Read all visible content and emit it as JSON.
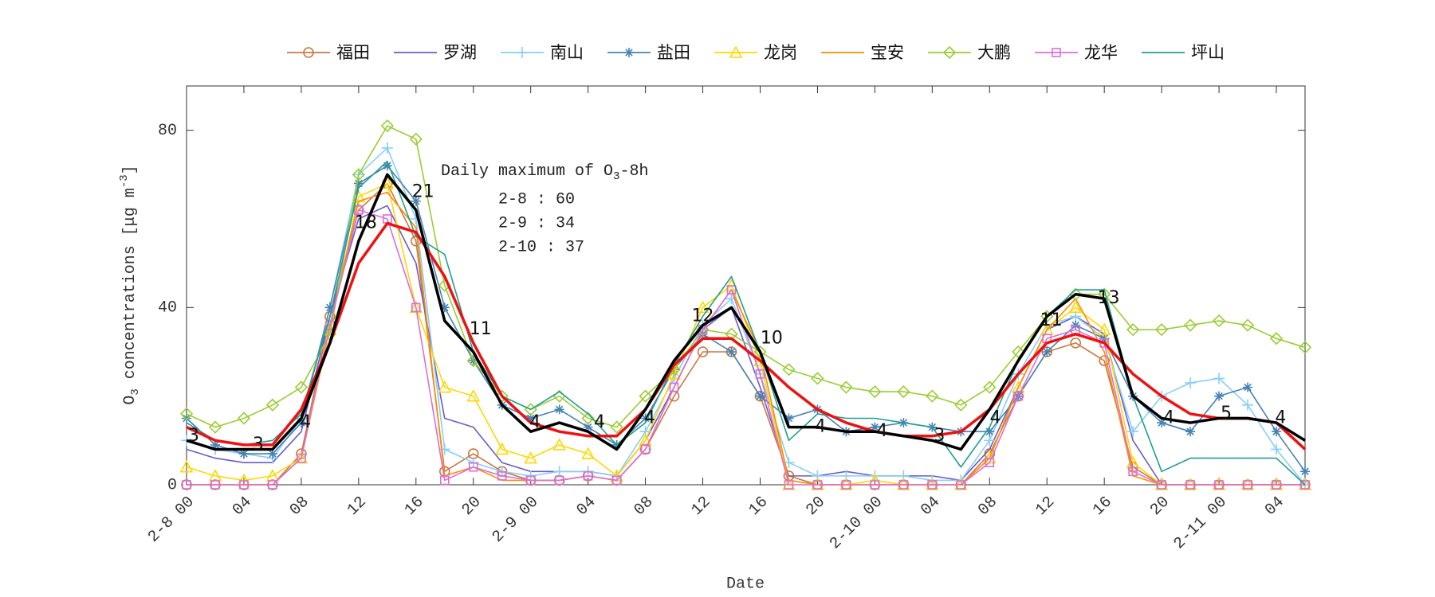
{
  "chart_data": {
    "type": "line",
    "x_label": "Date",
    "y_label_parts": [
      "O",
      "3",
      " concentrations [",
      "μg m",
      "-3",
      "]"
    ],
    "xlim": [
      0,
      78
    ],
    "ylim": [
      0,
      90
    ],
    "yticks": [
      0,
      40,
      80
    ],
    "xticks": [
      {
        "value": 0,
        "label": "2-8 00"
      },
      {
        "value": 4,
        "label": "04"
      },
      {
        "value": 8,
        "label": "08"
      },
      {
        "value": 12,
        "label": "12"
      },
      {
        "value": 16,
        "label": "16"
      },
      {
        "value": 20,
        "label": "20"
      },
      {
        "value": 24,
        "label": "2-9 00"
      },
      {
        "value": 28,
        "label": "04"
      },
      {
        "value": 32,
        "label": "08"
      },
      {
        "value": 36,
        "label": "12"
      },
      {
        "value": 40,
        "label": "16"
      },
      {
        "value": 44,
        "label": "20"
      },
      {
        "value": 48,
        "label": "2-10 00"
      },
      {
        "value": 52,
        "label": "04"
      },
      {
        "value": 56,
        "label": "08"
      },
      {
        "value": 60,
        "label": "12"
      },
      {
        "value": 64,
        "label": "16"
      },
      {
        "value": 68,
        "label": "20"
      },
      {
        "value": 72,
        "label": "2-11 00"
      },
      {
        "value": 76,
        "label": "04"
      }
    ],
    "x": [
      0,
      2,
      4,
      6,
      8,
      10,
      12,
      14,
      16,
      18,
      20,
      22,
      24,
      26,
      28,
      30,
      32,
      34,
      36,
      38,
      40,
      42,
      44,
      46,
      48,
      50,
      52,
      54,
      56,
      58,
      60,
      62,
      64,
      66,
      68,
      70,
      72,
      74,
      76,
      78
    ],
    "series": [
      {
        "name": "福田",
        "color": "#c87941",
        "marker": "circle",
        "values": [
          0,
          0,
          0,
          0,
          7,
          38,
          62,
          68,
          55,
          3,
          7,
          3,
          1,
          1,
          2,
          1,
          8,
          20,
          30,
          30,
          20,
          2,
          0,
          0,
          0,
          0,
          0,
          0,
          7,
          20,
          30,
          32,
          28,
          4,
          0,
          0,
          0,
          0,
          0,
          0
        ]
      },
      {
        "name": "罗湖",
        "color": "#6a5acd",
        "marker": "none",
        "values": [
          8,
          6,
          5,
          5,
          12,
          38,
          60,
          63,
          50,
          15,
          13,
          5,
          3,
          3,
          3,
          2,
          10,
          22,
          35,
          40,
          22,
          2,
          2,
          3,
          2,
          2,
          2,
          1,
          8,
          22,
          35,
          38,
          34,
          10,
          0,
          0,
          0,
          0,
          0,
          0
        ]
      },
      {
        "name": "南山",
        "color": "#87cefa",
        "marker": "plus",
        "values": [
          10,
          8,
          7,
          6,
          15,
          40,
          70,
          76,
          60,
          8,
          5,
          3,
          2,
          3,
          3,
          2,
          12,
          24,
          36,
          42,
          25,
          5,
          2,
          2,
          2,
          2,
          1,
          1,
          10,
          25,
          36,
          38,
          33,
          12,
          20,
          23,
          24,
          18,
          8,
          0
        ]
      },
      {
        "name": "盐田",
        "color": "#4682b4",
        "marker": "star",
        "values": [
          15,
          9,
          7,
          7,
          14,
          40,
          68,
          72,
          64,
          40,
          28,
          18,
          15,
          17,
          13,
          9,
          15,
          26,
          34,
          30,
          20,
          15,
          17,
          12,
          13,
          14,
          13,
          12,
          12,
          20,
          30,
          36,
          33,
          20,
          14,
          12,
          20,
          22,
          12,
          3
        ]
      },
      {
        "name": "龙岗",
        "color": "#ffd700",
        "marker": "triangle",
        "values": [
          4,
          2,
          1,
          2,
          6,
          35,
          65,
          68,
          40,
          22,
          20,
          8,
          6,
          9,
          7,
          2,
          10,
          25,
          40,
          45,
          28,
          0,
          0,
          0,
          1,
          0,
          0,
          0,
          6,
          22,
          35,
          40,
          35,
          5,
          0,
          0,
          0,
          0,
          0,
          0
        ]
      },
      {
        "name": "宝安",
        "color": "#ff8c00",
        "marker": "none",
        "values": [
          0,
          0,
          0,
          0,
          6,
          36,
          64,
          66,
          58,
          2,
          4,
          1,
          1,
          1,
          2,
          1,
          8,
          22,
          35,
          44,
          30,
          1,
          0,
          0,
          0,
          0,
          0,
          0,
          6,
          22,
          35,
          42,
          30,
          2,
          0,
          0,
          0,
          0,
          0,
          0
        ]
      },
      {
        "name": "大鹏",
        "color": "#9acd32",
        "marker": "diamond",
        "values": [
          16,
          13,
          15,
          18,
          22,
          34,
          70,
          81,
          78,
          45,
          28,
          20,
          17,
          20,
          15,
          13,
          20,
          26,
          35,
          34,
          30,
          26,
          24,
          22,
          21,
          21,
          20,
          18,
          22,
          30,
          38,
          43,
          43,
          35,
          35,
          36,
          37,
          36,
          33,
          31
        ]
      },
      {
        "name": "龙华",
        "color": "#da70d6",
        "marker": "square",
        "values": [
          0,
          0,
          0,
          0,
          6,
          36,
          62,
          60,
          40,
          1,
          4,
          2,
          1,
          1,
          2,
          1,
          8,
          22,
          35,
          44,
          25,
          0,
          0,
          0,
          0,
          0,
          0,
          0,
          5,
          20,
          33,
          35,
          32,
          3,
          0,
          0,
          0,
          0,
          0,
          0
        ]
      },
      {
        "name": "坪山",
        "color": "#20a090",
        "marker": "none",
        "values": [
          14,
          10,
          9,
          10,
          16,
          38,
          67,
          73,
          56,
          52,
          30,
          20,
          17,
          21,
          16,
          9,
          14,
          27,
          38,
          47,
          30,
          10,
          16,
          15,
          15,
          14,
          13,
          4,
          13,
          28,
          38,
          44,
          44,
          20,
          3,
          6,
          6,
          6,
          6,
          0
        ]
      },
      {
        "color": "#ee1111",
        "marker": "none",
        "width": 3.5,
        "values": [
          13,
          10,
          9,
          9,
          17,
          32,
          50,
          59,
          57,
          47,
          32,
          20,
          14,
          12,
          11,
          11,
          17,
          27,
          33,
          33,
          28,
          22,
          17,
          14,
          12,
          11,
          11,
          12,
          17,
          25,
          32,
          34,
          32,
          25,
          20,
          16,
          15,
          15,
          14,
          8
        ]
      },
      {
        "color": "#000000",
        "marker": "none",
        "width": 3.5,
        "values": [
          10,
          8,
          8,
          8,
          15,
          32,
          55,
          70,
          62,
          37,
          30,
          18,
          12,
          14,
          12,
          8,
          17,
          28,
          36,
          40,
          30,
          13,
          13,
          12,
          12,
          11,
          10,
          8,
          17,
          28,
          38,
          43,
          42,
          20,
          15,
          14,
          15,
          15,
          14,
          10
        ]
      }
    ],
    "annotation": {
      "title_parts": [
        "Daily maximum of O",
        "3",
        "-8h"
      ],
      "lines": [
        "2-8 : 60",
        "2-9 : 34",
        "2-10 : 37"
      ]
    },
    "point_labels": [
      {
        "x": 0.5,
        "y": 11,
        "text": "3"
      },
      {
        "x": 5,
        "y": 9,
        "text": "3"
      },
      {
        "x": 8.3,
        "y": 14,
        "text": "4"
      },
      {
        "x": 12.5,
        "y": 59,
        "text": "18"
      },
      {
        "x": 16.5,
        "y": 66,
        "text": "21"
      },
      {
        "x": 20.5,
        "y": 35,
        "text": "11"
      },
      {
        "x": 24.3,
        "y": 14,
        "text": "4"
      },
      {
        "x": 28.8,
        "y": 14,
        "text": "4"
      },
      {
        "x": 32.3,
        "y": 15,
        "text": "4"
      },
      {
        "x": 36,
        "y": 38,
        "text": "12"
      },
      {
        "x": 40.8,
        "y": 33,
        "text": "10"
      },
      {
        "x": 44.2,
        "y": 13,
        "text": "4"
      },
      {
        "x": 48.5,
        "y": 12,
        "text": "4"
      },
      {
        "x": 52.5,
        "y": 11,
        "text": "3"
      },
      {
        "x": 56.4,
        "y": 15,
        "text": "4"
      },
      {
        "x": 60.3,
        "y": 37,
        "text": "11"
      },
      {
        "x": 64.3,
        "y": 42,
        "text": "13"
      },
      {
        "x": 68.5,
        "y": 15,
        "text": "4"
      },
      {
        "x": 72.5,
        "y": 16,
        "text": "5"
      },
      {
        "x": 76.3,
        "y": 15,
        "text": "4"
      }
    ]
  }
}
